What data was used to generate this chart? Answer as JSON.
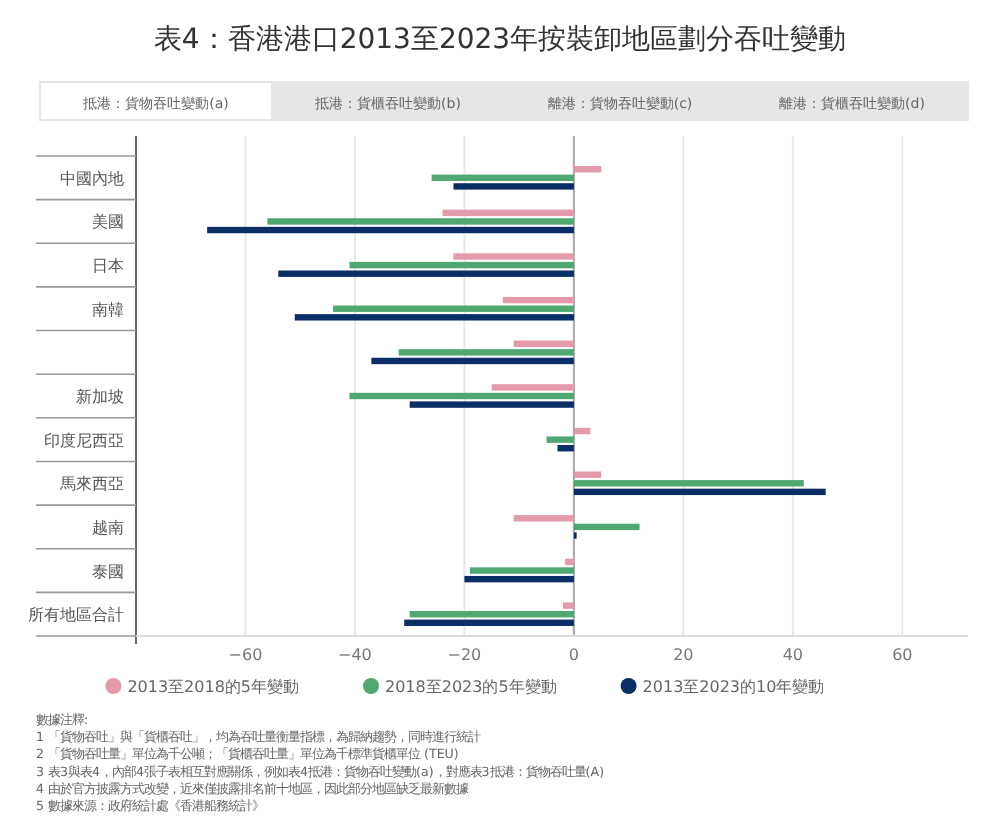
{
  "chart_data": {
    "type": "bar",
    "orientation": "horizontal",
    "title": "表4：香港港口2013至2023年按裝卸地區劃分吞吐變動",
    "categories": [
      "中國內地",
      "美國",
      "日本",
      "南韓",
      null,
      "新加坡",
      "印度尼西亞",
      "馬來西亞",
      "越南",
      "泰國",
      "所有地區合計"
    ],
    "series": [
      {
        "name": "2013至2018的5年變動",
        "color": "#e59aab",
        "values": [
          5,
          -24,
          -22,
          -13,
          -11,
          -15,
          3,
          5,
          -11,
          -1.6,
          -2
        ]
      },
      {
        "name": "2018至2023的5年變動",
        "color": "#4fa872",
        "values": [
          -26,
          -56,
          -41,
          -44,
          -32,
          -41,
          -5,
          42,
          12,
          -19,
          -30
        ]
      },
      {
        "name": "2013至2023的10年變動",
        "color": "#0c2e66",
        "values": [
          -22,
          -67,
          -54,
          -51,
          -37,
          -30,
          -3,
          46,
          0.5,
          -20,
          -31
        ]
      }
    ],
    "xlim": [
      -80,
      72
    ],
    "xticks": [
      -60,
      -40,
      -20,
      0,
      20,
      40,
      60
    ],
    "grid": "x",
    "legend": "bottom",
    "annotations": [
      "抵港：貨物吞吐變動(a)",
      "抵港：貨櫃吞吐變動(b)",
      "離港：貨物吞吐變動(c)",
      "離港：貨櫃吞吐變動(d)",
      "數據注釋:",
      "1 「貨物吞吐」與「貨櫃吞吐」，均為吞吐量衡量指標，為歸納趨勢，同時進行統計",
      "2 「貨物吞吐量」單位為千公噸；「貨櫃吞吐量」單位為千標準貨櫃單位 (TEU)",
      "3 表3與表4，內部4張子表相互對應關係，例如表4抵港：貨物吞吐變動(a)，對應表3抵港：貨物吞吐量(A)",
      "4 由於官方披露方式改變，近來僅披露排名前十地區，因此部分地區缺乏最新數據",
      "5 數據來源：政府統計處《香港船務統計》"
    ]
  }
}
